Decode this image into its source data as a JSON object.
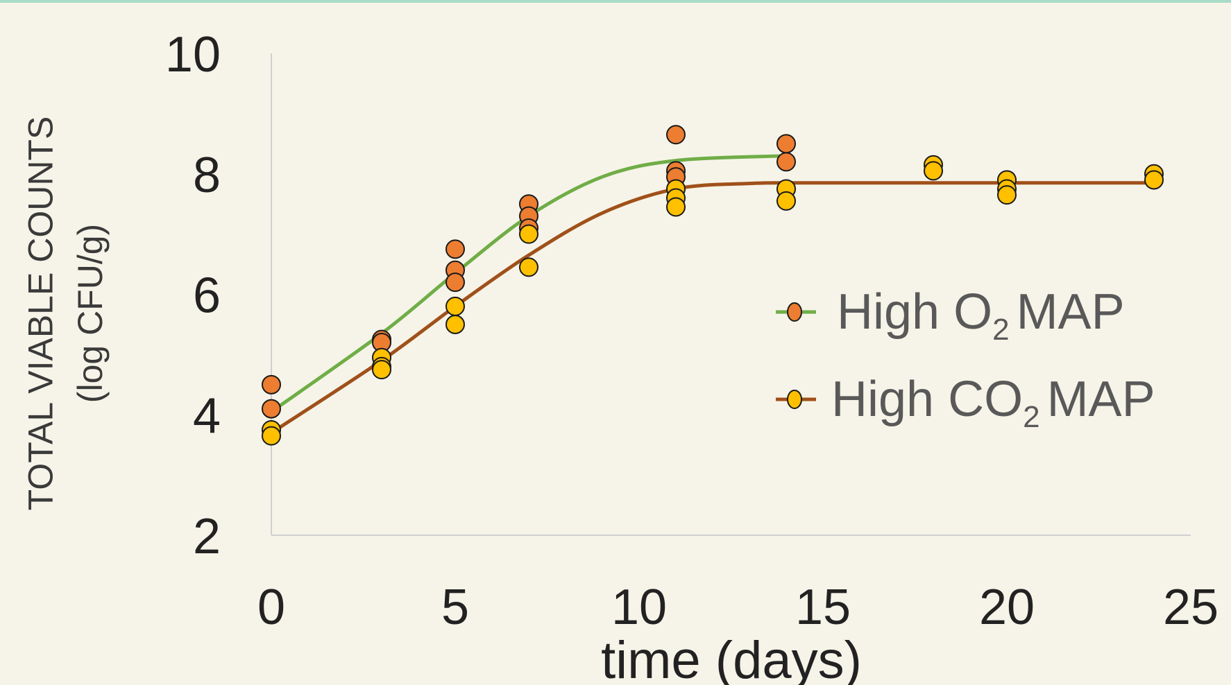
{
  "chart_data": {
    "type": "scatter",
    "title": "",
    "xlabel": "time (days)",
    "ylabel": [
      "TOTAL VIABLE COUNTS",
      "(log CFU/g)"
    ],
    "xlim": [
      0,
      25
    ],
    "ylim": [
      2,
      10
    ],
    "xticks": [
      "0",
      "5",
      "10",
      "15",
      "20",
      "25"
    ],
    "yticks": [
      "2",
      "4",
      "6",
      "8",
      "10"
    ],
    "grid": false,
    "legend_position": "center-right",
    "series": [
      {
        "name": "High O",
        "name_sub": "2",
        "name_suffix": "MAP",
        "line_color": "#70ad47",
        "marker_color": "#ed7d31",
        "points": [
          {
            "x": 0,
            "y": 4.5
          },
          {
            "x": 0,
            "y": 4.1
          },
          {
            "x": 3,
            "y": 5.25
          },
          {
            "x": 3,
            "y": 5.2
          },
          {
            "x": 5,
            "y": 6.75
          },
          {
            "x": 5,
            "y": 6.4
          },
          {
            "x": 5,
            "y": 6.2
          },
          {
            "x": 7,
            "y": 7.5
          },
          {
            "x": 7,
            "y": 7.3
          },
          {
            "x": 7,
            "y": 7.1
          },
          {
            "x": 11,
            "y": 8.65
          },
          {
            "x": 11,
            "y": 8.05
          },
          {
            "x": 11,
            "y": 7.95
          },
          {
            "x": 14,
            "y": 8.5
          },
          {
            "x": 14,
            "y": 8.2
          }
        ],
        "fit": [
          {
            "x": 0,
            "y": 4.05
          },
          {
            "x": 3,
            "y": 5.35
          },
          {
            "x": 5,
            "y": 6.35
          },
          {
            "x": 7,
            "y": 7.3
          },
          {
            "x": 9,
            "y": 7.95
          },
          {
            "x": 11,
            "y": 8.22
          },
          {
            "x": 14,
            "y": 8.3
          }
        ]
      },
      {
        "name": "High CO",
        "name_sub": "2",
        "name_suffix": "MAP",
        "line_color": "#a0501a",
        "marker_color": "#ffc000",
        "points": [
          {
            "x": 0,
            "y": 3.75
          },
          {
            "x": 0,
            "y": 3.65
          },
          {
            "x": 3,
            "y": 4.95
          },
          {
            "x": 3,
            "y": 4.8
          },
          {
            "x": 3,
            "y": 4.75
          },
          {
            "x": 5,
            "y": 5.8
          },
          {
            "x": 5,
            "y": 5.5
          },
          {
            "x": 7,
            "y": 7.0
          },
          {
            "x": 7,
            "y": 6.45
          },
          {
            "x": 11,
            "y": 7.75
          },
          {
            "x": 11,
            "y": 7.6
          },
          {
            "x": 11,
            "y": 7.45
          },
          {
            "x": 14,
            "y": 7.75
          },
          {
            "x": 14,
            "y": 7.55
          },
          {
            "x": 18,
            "y": 8.15
          },
          {
            "x": 18,
            "y": 8.05
          },
          {
            "x": 20,
            "y": 7.9
          },
          {
            "x": 20,
            "y": 7.75
          },
          {
            "x": 20,
            "y": 7.65
          },
          {
            "x": 24,
            "y": 8.0
          },
          {
            "x": 24,
            "y": 7.9
          }
        ],
        "fit": [
          {
            "x": 0,
            "y": 3.7
          },
          {
            "x": 3,
            "y": 4.9
          },
          {
            "x": 5,
            "y": 5.8
          },
          {
            "x": 7,
            "y": 6.65
          },
          {
            "x": 9,
            "y": 7.35
          },
          {
            "x": 11,
            "y": 7.75
          },
          {
            "x": 13,
            "y": 7.84
          },
          {
            "x": 15,
            "y": 7.85
          },
          {
            "x": 24,
            "y": 7.85
          }
        ]
      }
    ]
  }
}
